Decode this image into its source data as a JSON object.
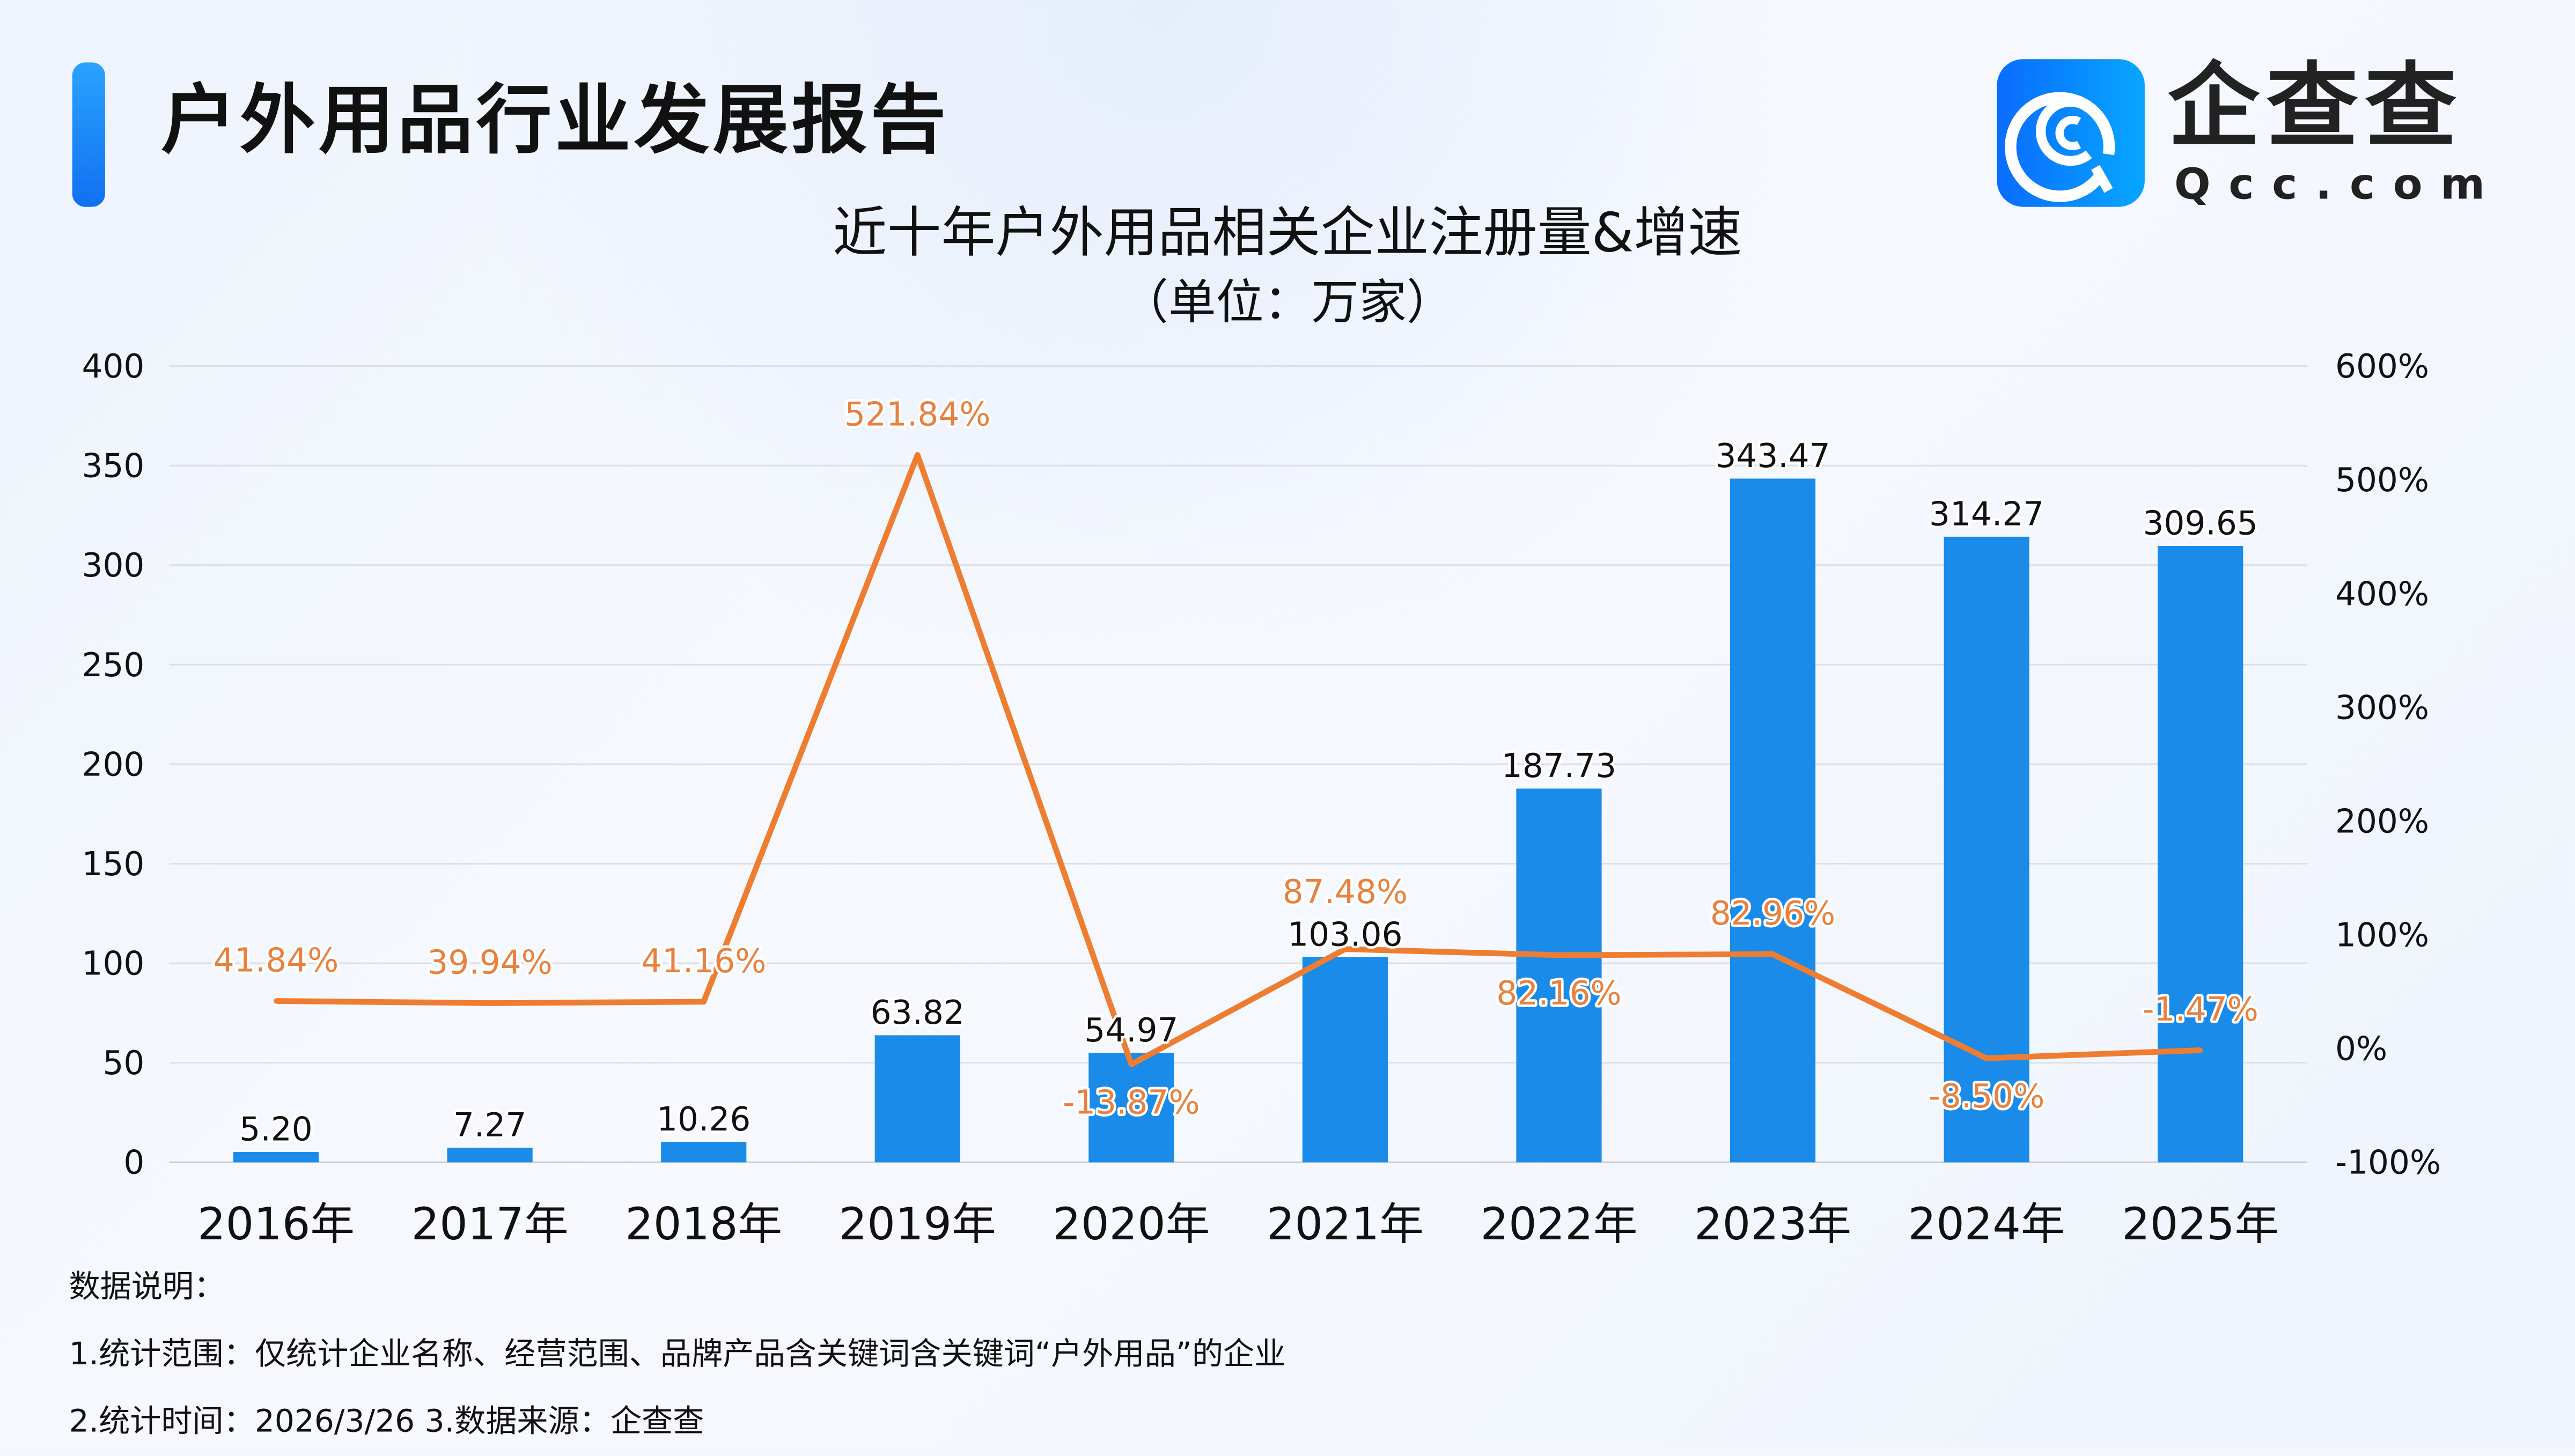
{
  "header": {
    "title": "户外用品行业发展报告",
    "logo_cn": "企查查",
    "logo_en": "Qcc.com"
  },
  "chart_data": {
    "type": "bar+line",
    "title": "近十年户外用品相关企业注册量&增速",
    "subtitle": "（单位：万家）",
    "categories": [
      "2016年",
      "2017年",
      "2018年",
      "2019年",
      "2020年",
      "2021年",
      "2022年",
      "2023年",
      "2024年",
      "2025年"
    ],
    "series": [
      {
        "type": "bar",
        "axis": "left",
        "values": [
          5.2,
          7.27,
          10.26,
          63.82,
          54.97,
          103.06,
          187.73,
          343.47,
          314.27,
          309.65
        ],
        "labels": [
          "5.20",
          "7.27",
          "10.26",
          "63.82",
          "54.97",
          "103.06",
          "187.73",
          "343.47",
          "314.27",
          "309.65"
        ],
        "color": "#1a8be8"
      },
      {
        "type": "line",
        "axis": "right",
        "values": [
          41.84,
          39.94,
          41.16,
          521.84,
          -13.87,
          87.48,
          82.16,
          82.96,
          -8.5,
          -1.47
        ],
        "labels": [
          "41.84%",
          "39.94%",
          "41.16%",
          "521.84%",
          "-13.87%",
          "87.48%",
          "82.16%",
          "82.96%",
          "-8.50%",
          "-1.47%"
        ],
        "color": "#ee7d31"
      }
    ],
    "left_axis": {
      "range": [
        0,
        400
      ],
      "ticks": [
        "0",
        "50",
        "100",
        "150",
        "200",
        "250",
        "300",
        "350",
        "400"
      ]
    },
    "right_axis": {
      "range": [
        -100,
        600
      ],
      "ticks": [
        "-100%",
        "0%",
        "100%",
        "200%",
        "300%",
        "400%",
        "500%",
        "600%"
      ]
    },
    "grid": true,
    "legend": "none"
  },
  "notes": {
    "heading": "数据说明：",
    "line1": "1.统计范围：仅统计企业名称、经营范围、品牌产品含关键词含关键词“户外用品”的企业",
    "line2": "2.统计时间：2026/3/26  3.数据来源：企查查"
  }
}
